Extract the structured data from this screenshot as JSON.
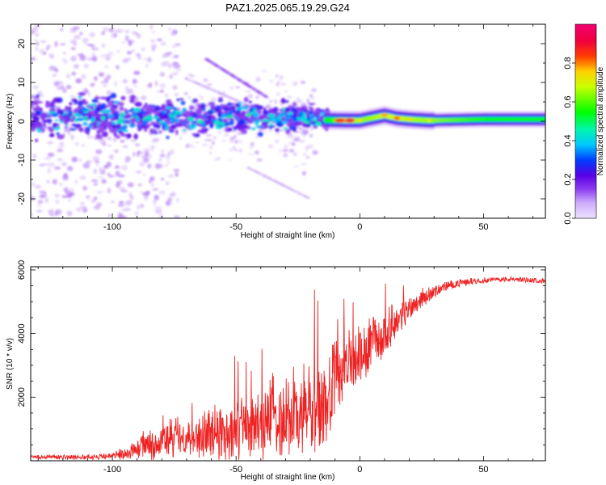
{
  "title": "PAZ1.2025.065.19.29.G24",
  "chart_data": [
    {
      "type": "heatmap",
      "xlabel": "Height of straight line (km)",
      "ylabel": "Frequency (Hz)",
      "xlim": [
        -133,
        75
      ],
      "ylim": [
        -25,
        25
      ],
      "xticks": [
        -100,
        -50,
        0,
        50
      ],
      "yticks": [
        -20,
        -10,
        0,
        10,
        20
      ],
      "colorbar": {
        "label": "Normalized spectral amplitude",
        "range": [
          0,
          1
        ],
        "ticks": [
          "0.0",
          "0.2",
          "0.4",
          "0.6",
          "0.8"
        ],
        "tick_values": [
          0,
          0.2,
          0.4,
          0.6,
          0.8
        ]
      },
      "ridge": [
        {
          "x": -12,
          "y": 0.3,
          "amp": 0.35
        },
        {
          "x": -5,
          "y": 0.2,
          "amp": 0.9
        },
        {
          "x": 0,
          "y": 0.2,
          "amp": 0.6
        },
        {
          "x": 10,
          "y": 1.5,
          "amp": 0.75
        },
        {
          "x": 15,
          "y": 0.8,
          "amp": 0.8
        },
        {
          "x": 20,
          "y": 0.5,
          "amp": 0.7
        },
        {
          "x": 28,
          "y": 0.2,
          "amp": 0.65
        },
        {
          "x": 50,
          "y": 0.5,
          "amp": 0.35
        },
        {
          "x": 75,
          "y": 0.5,
          "amp": 0.3
        }
      ]
    },
    {
      "type": "line",
      "xlabel": "Height of straight line (km)",
      "ylabel": "SNR (10 * v/v)",
      "xlim": [
        -133,
        75
      ],
      "ylim": [
        0,
        6100
      ],
      "xticks": [
        -100,
        -50,
        0,
        50
      ],
      "yticks": [
        2000,
        4000,
        6000
      ],
      "series": [
        {
          "color": "#ee2222",
          "envelope_x": [
            -133,
            -110,
            -100,
            -92,
            -85,
            -75,
            -65,
            -55,
            -45,
            -40,
            -35,
            -30,
            -25,
            -20,
            -15,
            -12,
            -10,
            -5,
            0,
            5,
            10,
            15,
            20,
            25,
            30,
            35,
            45,
            55,
            65,
            75
          ],
          "envelope_mean": [
            120,
            120,
            150,
            300,
            550,
            700,
            800,
            900,
            1050,
            1200,
            1400,
            1500,
            1400,
            1600,
            1700,
            1900,
            2700,
            3000,
            3200,
            3600,
            4000,
            4400,
            4800,
            5100,
            5300,
            5500,
            5650,
            5700,
            5700,
            5650
          ],
          "envelope_noise": [
            70,
            80,
            100,
            250,
            500,
            650,
            750,
            900,
            1000,
            1100,
            1300,
            1400,
            1300,
            1500,
            1500,
            1500,
            1100,
            1000,
            900,
            800,
            700,
            500,
            400,
            300,
            200,
            150,
            100,
            80,
            80,
            80
          ]
        }
      ]
    }
  ]
}
